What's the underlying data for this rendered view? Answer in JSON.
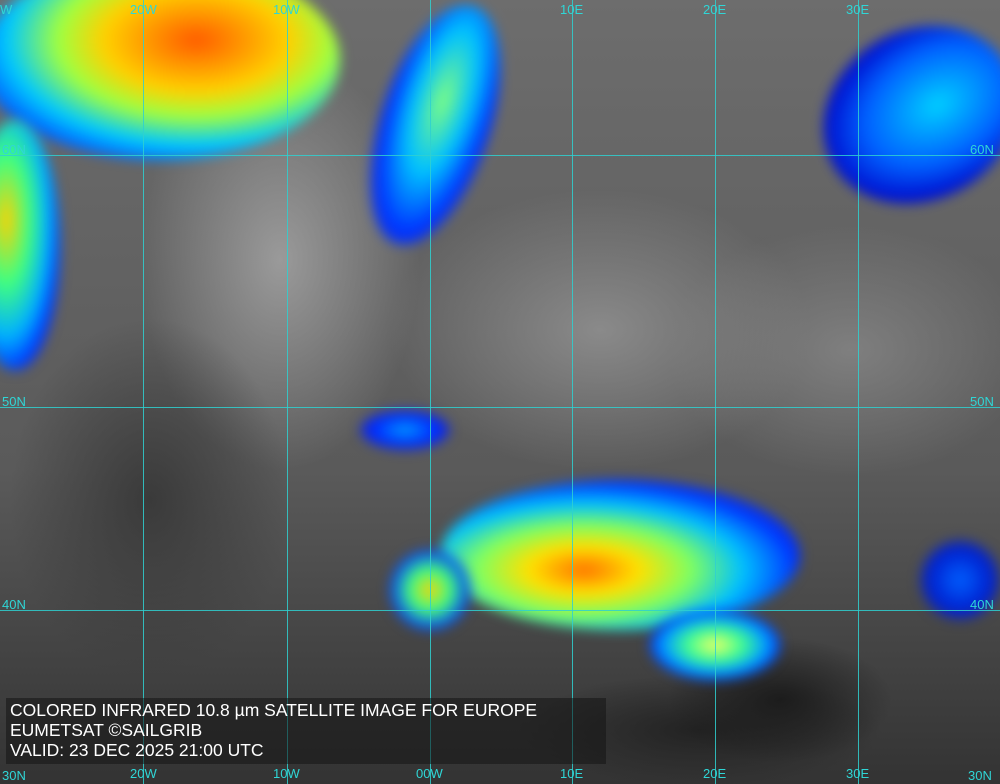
{
  "map": {
    "type": "satellite",
    "region": "Europe",
    "colors": {
      "grid": "#2fd0d0",
      "coast": "#ffffff",
      "cloud_cold": "#ff4000",
      "cloud_mid": "#ffff00",
      "cloud_cool": "#00c0ff",
      "cloud_edge": "#0020ff"
    },
    "top_labels": [
      "W",
      "20W",
      "10W",
      "10E",
      "20E",
      "30E"
    ],
    "bottom_labels": [
      "30N",
      "20W",
      "10W",
      "00W",
      "10E",
      "20E",
      "30E",
      "30N"
    ],
    "left_labels": [
      "60N",
      "50N",
      "40N"
    ],
    "right_labels": [
      "60N",
      "50N",
      "40N"
    ]
  },
  "caption": {
    "line1": "COLORED INFRARED 10.8 µm SATELLITE IMAGE FOR EUROPE",
    "line2": "EUMETSAT ©SAILGRIB",
    "line3": "VALID:  23 DEC 2025 21:00 UTC"
  }
}
